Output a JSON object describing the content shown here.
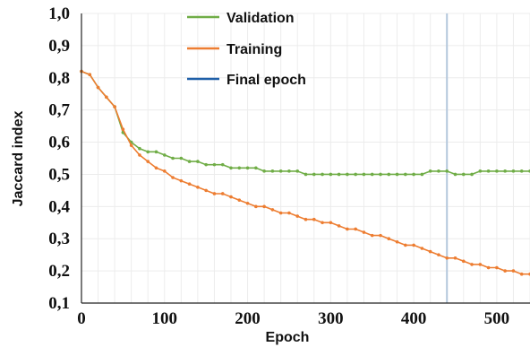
{
  "chart_data": {
    "type": "line",
    "title": "",
    "xlabel": "Epoch",
    "ylabel": "Jaccard index",
    "xlim": [
      0,
      540
    ],
    "ylim": [
      0.1,
      1.0
    ],
    "x_ticks": [
      "0",
      "100",
      "200",
      "300",
      "400",
      "500"
    ],
    "y_ticks": [
      "0,1",
      "0,2",
      "0,3",
      "0,4",
      "0,5",
      "0,6",
      "0,7",
      "0,8",
      "0,9",
      "1,0"
    ],
    "grid": true,
    "legend_position": "top-center",
    "final_epoch": 440,
    "series": [
      {
        "name": "Validation",
        "color": "#70ad47",
        "x": [
          0,
          10,
          20,
          30,
          40,
          50,
          60,
          70,
          80,
          90,
          100,
          110,
          120,
          130,
          140,
          150,
          160,
          170,
          180,
          190,
          200,
          210,
          220,
          230,
          240,
          250,
          260,
          270,
          280,
          290,
          300,
          310,
          320,
          330,
          340,
          350,
          360,
          370,
          380,
          390,
          400,
          410,
          420,
          430,
          440,
          450,
          460,
          470,
          480,
          490,
          500,
          510,
          520,
          530,
          540
        ],
        "values": [
          0.82,
          0.81,
          0.77,
          0.74,
          0.71,
          0.63,
          0.6,
          0.58,
          0.57,
          0.57,
          0.56,
          0.55,
          0.55,
          0.54,
          0.54,
          0.53,
          0.53,
          0.53,
          0.52,
          0.52,
          0.52,
          0.52,
          0.51,
          0.51,
          0.51,
          0.51,
          0.51,
          0.5,
          0.5,
          0.5,
          0.5,
          0.5,
          0.5,
          0.5,
          0.5,
          0.5,
          0.5,
          0.5,
          0.5,
          0.5,
          0.5,
          0.5,
          0.51,
          0.51,
          0.51,
          0.5,
          0.5,
          0.5,
          0.51,
          0.51,
          0.51,
          0.51,
          0.51,
          0.51,
          0.51
        ]
      },
      {
        "name": "Training",
        "color": "#ed7d31",
        "x": [
          0,
          10,
          20,
          30,
          40,
          50,
          60,
          70,
          80,
          90,
          100,
          110,
          120,
          130,
          140,
          150,
          160,
          170,
          180,
          190,
          200,
          210,
          220,
          230,
          240,
          250,
          260,
          270,
          280,
          290,
          300,
          310,
          320,
          330,
          340,
          350,
          360,
          370,
          380,
          390,
          400,
          410,
          420,
          430,
          440,
          450,
          460,
          470,
          480,
          490,
          500,
          510,
          520,
          530,
          540
        ],
        "values": [
          0.82,
          0.81,
          0.77,
          0.74,
          0.71,
          0.64,
          0.59,
          0.56,
          0.54,
          0.52,
          0.51,
          0.49,
          0.48,
          0.47,
          0.46,
          0.45,
          0.44,
          0.44,
          0.43,
          0.42,
          0.41,
          0.4,
          0.4,
          0.39,
          0.38,
          0.38,
          0.37,
          0.36,
          0.36,
          0.35,
          0.35,
          0.34,
          0.33,
          0.33,
          0.32,
          0.31,
          0.31,
          0.3,
          0.29,
          0.28,
          0.28,
          0.27,
          0.26,
          0.25,
          0.24,
          0.24,
          0.23,
          0.22,
          0.22,
          0.21,
          0.21,
          0.2,
          0.2,
          0.19,
          0.19
        ]
      }
    ]
  },
  "legend": {
    "validation": "Validation",
    "training": "Training",
    "final_epoch": "Final epoch"
  },
  "colors": {
    "validation": "#70ad47",
    "training": "#ed7d31",
    "final_epoch": "#1f5fa8",
    "final_epoch_line": "#b4c7dc",
    "grid": "#ececec",
    "axis": "#222222"
  }
}
